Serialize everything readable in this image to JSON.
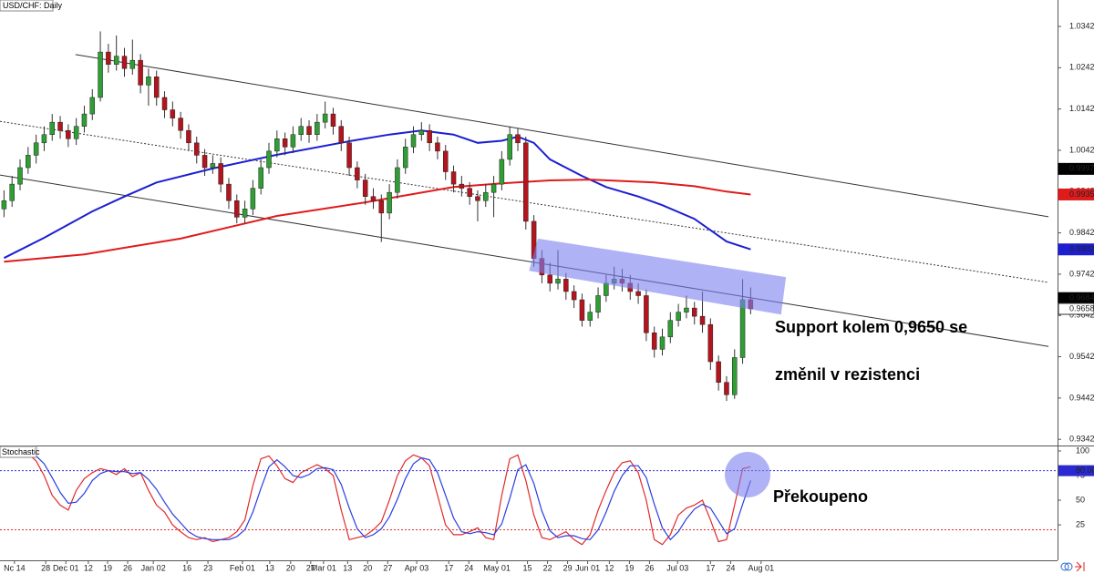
{
  "chart_data": [
    {
      "type": "candlestick",
      "title": "USD/CHF: Daily",
      "xlim": [
        -0.5,
        131
      ],
      "ylim": [
        0.9327,
        1.0406
      ],
      "yticks": [
        0.9342,
        0.9442,
        0.9542,
        0.9642,
        0.9742,
        0.9842,
        0.9942,
        1.0042,
        1.0142,
        1.0242,
        1.0342
      ],
      "up_color": "#2f9e34",
      "down_color": "#b3141d",
      "candles": [
        [
          0.99,
          0.9945,
          0.988,
          0.992
        ],
        [
          0.992,
          0.998,
          0.9905,
          0.996
        ],
        [
          0.996,
          1.002,
          0.9945,
          1.0
        ],
        [
          1.0,
          1.005,
          0.9985,
          1.003
        ],
        [
          1.003,
          1.008,
          1.001,
          1.006
        ],
        [
          1.006,
          1.01,
          1.004,
          1.008
        ],
        [
          1.008,
          1.013,
          1.0065,
          1.011
        ],
        [
          1.011,
          1.0125,
          1.007,
          1.009
        ],
        [
          1.009,
          1.0105,
          1.005,
          1.007
        ],
        [
          1.007,
          1.012,
          1.0055,
          1.01
        ],
        [
          1.01,
          1.015,
          1.0085,
          1.013
        ],
        [
          1.013,
          1.019,
          1.0115,
          1.017
        ],
        [
          1.017,
          1.033,
          1.016,
          1.028
        ],
        [
          1.028,
          1.03,
          1.023,
          1.025
        ],
        [
          1.025,
          1.032,
          1.0235,
          1.027
        ],
        [
          1.027,
          1.029,
          1.022,
          1.024
        ],
        [
          1.024,
          1.031,
          1.0225,
          1.026
        ],
        [
          1.026,
          1.0275,
          1.018,
          1.02
        ],
        [
          1.02,
          1.024,
          1.015,
          1.022
        ],
        [
          1.022,
          1.0235,
          1.015,
          1.017
        ],
        [
          1.017,
          1.0185,
          1.012,
          1.014
        ],
        [
          1.014,
          1.016,
          1.01,
          1.012
        ],
        [
          1.012,
          1.0135,
          1.007,
          1.009
        ],
        [
          1.009,
          1.0105,
          1.004,
          1.006
        ],
        [
          1.006,
          1.0075,
          1.001,
          1.003
        ],
        [
          1.003,
          1.0045,
          0.998,
          1.0
        ],
        [
          1.0,
          1.003,
          0.9985,
          1.001
        ],
        [
          1.001,
          1.0025,
          0.994,
          0.996
        ],
        [
          0.996,
          0.9975,
          0.99,
          0.992
        ],
        [
          0.992,
          0.9935,
          0.9865,
          0.988
        ],
        [
          0.988,
          0.992,
          0.9865,
          0.99
        ],
        [
          0.99,
          0.997,
          0.9885,
          0.995
        ],
        [
          0.995,
          1.002,
          0.9935,
          1.0
        ],
        [
          1.0,
          1.006,
          0.9985,
          1.004
        ],
        [
          1.004,
          1.009,
          1.0025,
          1.007
        ],
        [
          1.007,
          1.0085,
          1.003,
          1.005
        ],
        [
          1.005,
          1.01,
          1.0035,
          1.008
        ],
        [
          1.008,
          1.012,
          1.0065,
          1.01
        ],
        [
          1.01,
          1.0115,
          1.006,
          1.008
        ],
        [
          1.008,
          1.013,
          1.0065,
          1.011
        ],
        [
          1.011,
          1.016,
          1.0095,
          1.013
        ],
        [
          1.013,
          1.0145,
          1.008,
          1.01
        ],
        [
          1.01,
          1.0115,
          1.004,
          1.006
        ],
        [
          1.006,
          1.0075,
          0.998,
          1.0
        ],
        [
          1.0,
          1.0015,
          0.995,
          0.997
        ],
        [
          0.997,
          0.9985,
          0.991,
          0.993
        ],
        [
          0.993,
          0.995,
          0.99,
          0.992
        ],
        [
          0.992,
          0.9935,
          0.982,
          0.989
        ],
        [
          0.989,
          0.996,
          0.9875,
          0.994
        ],
        [
          0.994,
          1.002,
          0.9925,
          1.0
        ],
        [
          1.0,
          1.007,
          0.9985,
          1.005
        ],
        [
          1.005,
          1.01,
          1.0035,
          1.008
        ],
        [
          1.008,
          1.011,
          1.0065,
          1.009
        ],
        [
          1.009,
          1.0105,
          1.004,
          1.006
        ],
        [
          1.006,
          1.0075,
          1.002,
          1.004
        ],
        [
          1.004,
          1.0055,
          0.997,
          0.999
        ],
        [
          0.999,
          1.0005,
          0.994,
          0.996
        ],
        [
          0.996,
          0.998,
          0.993,
          0.995
        ],
        [
          0.995,
          0.9965,
          0.991,
          0.993
        ],
        [
          0.993,
          0.9945,
          0.987,
          0.992
        ],
        [
          0.992,
          0.996,
          0.9905,
          0.994
        ],
        [
          0.994,
          0.998,
          0.988,
          0.996
        ],
        [
          0.996,
          1.004,
          0.9945,
          1.002
        ],
        [
          1.002,
          1.01,
          1.0005,
          1.008
        ],
        [
          1.008,
          1.0095,
          1.004,
          1.006
        ],
        [
          1.006,
          1.0075,
          0.985,
          0.987
        ],
        [
          0.987,
          0.9885,
          0.976,
          0.978
        ],
        [
          0.978,
          0.98,
          0.972,
          0.974
        ],
        [
          0.974,
          0.977,
          0.97,
          0.972
        ],
        [
          0.972,
          0.98,
          0.9705,
          0.973
        ],
        [
          0.973,
          0.9745,
          0.968,
          0.97
        ],
        [
          0.97,
          0.9715,
          0.966,
          0.968
        ],
        [
          0.968,
          0.9695,
          0.9615,
          0.963
        ],
        [
          0.963,
          0.967,
          0.9615,
          0.965
        ],
        [
          0.965,
          0.971,
          0.9635,
          0.969
        ],
        [
          0.969,
          0.974,
          0.9675,
          0.972
        ],
        [
          0.972,
          0.976,
          0.9705,
          0.973
        ],
        [
          0.973,
          0.9755,
          0.97,
          0.972
        ],
        [
          0.972,
          0.974,
          0.968,
          0.97
        ],
        [
          0.97,
          0.972,
          0.967,
          0.969
        ],
        [
          0.969,
          0.9705,
          0.958,
          0.96
        ],
        [
          0.96,
          0.9615,
          0.954,
          0.956
        ],
        [
          0.956,
          0.961,
          0.9545,
          0.959
        ],
        [
          0.959,
          0.965,
          0.9575,
          0.963
        ],
        [
          0.963,
          0.967,
          0.9615,
          0.965
        ],
        [
          0.965,
          0.969,
          0.9635,
          0.966
        ],
        [
          0.966,
          0.9675,
          0.962,
          0.964
        ],
        [
          0.964,
          0.97,
          0.96,
          0.962
        ],
        [
          0.962,
          0.9635,
          0.951,
          0.953
        ],
        [
          0.953,
          0.9545,
          0.946,
          0.948
        ],
        [
          0.948,
          0.9495,
          0.9435,
          0.945
        ],
        [
          0.945,
          0.956,
          0.944,
          0.954
        ],
        [
          0.954,
          0.973,
          0.9525,
          0.968
        ],
        [
          0.968,
          0.971,
          0.9645,
          0.9658
        ]
      ],
      "series": [
        {
          "color": "#1c1fd0",
          "x": [
            0,
            5,
            11,
            15,
            19,
            26,
            34,
            43,
            48,
            52,
            56,
            59,
            62,
            64,
            66,
            68,
            72,
            75,
            79,
            82,
            86,
            90,
            93
          ],
          "values": [
            0.9781,
            0.983,
            0.9894,
            0.993,
            0.9964,
            0.9998,
            1.0031,
            1.0064,
            1.008,
            1.009,
            1.008,
            1.006,
            1.0065,
            1.0075,
            1.006,
            1.002,
            0.998,
            0.9953,
            0.993,
            0.9909,
            0.9876,
            0.9821,
            0.9802
          ]
        },
        {
          "color": "#e01b1b",
          "x": [
            0,
            10,
            22,
            34,
            45,
            56,
            62,
            68,
            73,
            81,
            86,
            90,
            93
          ],
          "values": [
            0.9772,
            0.979,
            0.9828,
            0.9883,
            0.9916,
            0.9953,
            0.9962,
            0.9969,
            0.9971,
            0.9964,
            0.9955,
            0.9942,
            0.9935
          ]
        }
      ],
      "channel": [
        {
          "x": [
            8.9,
            130.1
          ],
          "values": [
            1.0274,
            0.9881
          ],
          "dashed": false
        },
        {
          "x": [
            -0.5,
            130.1
          ],
          "values": [
            1.0112,
            0.9722
          ],
          "dashed": true
        },
        {
          "x": [
            -0.5,
            130.1
          ],
          "values": [
            0.9982,
            0.9567
          ],
          "dashed": false
        }
      ],
      "zone": {
        "x": [
          66.5,
          97.4,
          96.8,
          65.4
        ],
        "values": [
          0.9828,
          0.9735,
          0.9644,
          0.975
        ],
        "color": "#7b7ff0"
      },
      "price_labels": [
        {
          "value": 0.9997,
          "color": "#000000",
          "text_color": "#ffffff"
        },
        {
          "value": 0.9935,
          "color": "#e01b1b",
          "text_color": "#ffffff"
        },
        {
          "value": 0.9802,
          "color": "#1c1fd0",
          "text_color": "#ffffff"
        },
        {
          "value": 0.9684,
          "color": "#000000",
          "text_color": "#ffffff"
        },
        {
          "value": 0.9658,
          "color": "#ffffff",
          "text_color": "#000000"
        }
      ],
      "annotation": [
        "Support kolem 0,9650 se",
        "změnil v rezistenci"
      ]
    },
    {
      "type": "line",
      "title": "Stochastic",
      "xlim": [
        -0.5,
        131
      ],
      "ylim": [
        -11,
        104.6
      ],
      "yticks": [
        25,
        50,
        75,
        100
      ],
      "xticks": [
        {
          "value": 1.3,
          "label": "Nc 14"
        },
        {
          "value": 5.2,
          "label": "28"
        },
        {
          "value": 7.7,
          "label": "Dec 01"
        },
        {
          "value": 10.5,
          "label": "12"
        },
        {
          "value": 12.9,
          "label": "19"
        },
        {
          "value": 15.4,
          "label": "26"
        },
        {
          "value": 18.6,
          "label": "Jan 02"
        },
        {
          "value": 22.8,
          "label": "16"
        },
        {
          "value": 25.4,
          "label": "23"
        },
        {
          "value": 29.7,
          "label": "Feb 01"
        },
        {
          "value": 33.1,
          "label": "13"
        },
        {
          "value": 35.7,
          "label": "20"
        },
        {
          "value": 38.2,
          "label": "27"
        },
        {
          "value": 39.8,
          "label": "Mar 01"
        },
        {
          "value": 42.8,
          "label": "13"
        },
        {
          "value": 45.3,
          "label": "20"
        },
        {
          "value": 47.8,
          "label": "27"
        },
        {
          "value": 51.4,
          "label": "Apr 03"
        },
        {
          "value": 55.4,
          "label": "17"
        },
        {
          "value": 57.9,
          "label": "24"
        },
        {
          "value": 61.4,
          "label": "May 01"
        },
        {
          "value": 65.2,
          "label": "15"
        },
        {
          "value": 67.7,
          "label": "22"
        },
        {
          "value": 70.2,
          "label": "29"
        },
        {
          "value": 72.7,
          "label": "Jun 01"
        },
        {
          "value": 75.4,
          "label": "12"
        },
        {
          "value": 77.9,
          "label": "19"
        },
        {
          "value": 80.4,
          "label": "26"
        },
        {
          "value": 83.9,
          "label": "Jul 03"
        },
        {
          "value": 88.0,
          "label": "17"
        },
        {
          "value": 90.5,
          "label": "24"
        },
        {
          "value": 94.3,
          "label": "Aug 01"
        }
      ],
      "series": [
        {
          "color": "#e02a2a",
          "values": [
            97,
            99,
            98,
            97,
            90,
            75,
            55,
            45,
            40,
            60,
            72,
            78,
            82,
            80,
            76,
            82,
            74,
            78,
            60,
            45,
            38,
            25,
            18,
            12,
            10,
            12,
            8,
            10,
            12,
            18,
            30,
            65,
            92,
            95,
            85,
            72,
            68,
            78,
            82,
            86,
            82,
            75,
            40,
            10,
            12,
            14,
            20,
            28,
            50,
            75,
            90,
            96,
            93,
            85,
            55,
            25,
            15,
            15,
            18,
            22,
            12,
            10,
            55,
            92,
            96,
            70,
            35,
            12,
            10,
            14,
            18,
            10,
            5,
            15,
            40,
            60,
            78,
            88,
            90,
            78,
            50,
            10,
            5,
            15,
            35,
            42,
            45,
            50,
            30,
            8,
            10,
            45,
            82,
            84
          ]
        },
        {
          "color": "#2a3ee0",
          "values": [
            95,
            97,
            98,
            98,
            95,
            87,
            73,
            58,
            47,
            48,
            57,
            70,
            77,
            80,
            79,
            79,
            77,
            78,
            71,
            61,
            48,
            36,
            27,
            18,
            13,
            11,
            10,
            10,
            10,
            13,
            20,
            38,
            62,
            84,
            91,
            84,
            75,
            73,
            76,
            82,
            83,
            81,
            66,
            42,
            21,
            12,
            15,
            21,
            33,
            51,
            72,
            87,
            93,
            91,
            78,
            55,
            32,
            18,
            16,
            18,
            17,
            15,
            26,
            52,
            81,
            86,
            67,
            39,
            19,
            12,
            14,
            14,
            11,
            10,
            20,
            38,
            59,
            75,
            85,
            85,
            73,
            46,
            22,
            10,
            18,
            31,
            41,
            46,
            42,
            29,
            16,
            21,
            46,
            70
          ]
        }
      ],
      "levels": [
        {
          "value": 80,
          "label": "80.00",
          "color": "#2a2ad0"
        },
        {
          "value": 20,
          "color": "#e02a2a"
        }
      ],
      "annotation": "Překoupeno"
    }
  ]
}
